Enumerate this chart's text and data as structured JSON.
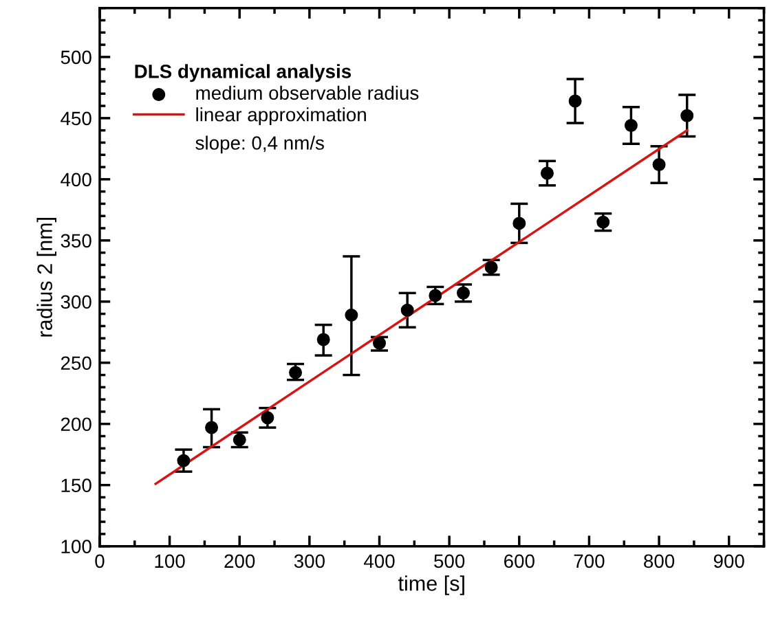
{
  "chart_data": {
    "type": "scatter",
    "xlabel": "time [s]",
    "ylabel": "radius 2 [nm]",
    "legend_title": "DLS dynamical analysis",
    "xlim": [
      0,
      950
    ],
    "xticks": [
      0,
      100,
      200,
      300,
      400,
      500,
      600,
      700,
      800,
      900
    ],
    "ylim": [
      100,
      540
    ],
    "yticks": [
      100,
      150,
      200,
      250,
      300,
      350,
      400,
      450,
      500
    ],
    "legend": "top left",
    "grid": false,
    "series": [
      {
        "name": "medium observable radius",
        "marker": "circle",
        "color": "#000000",
        "x": [
          120,
          160,
          200,
          240,
          280,
          320,
          360,
          400,
          440,
          480,
          520,
          560,
          600,
          640,
          680,
          720,
          760,
          800,
          840
        ],
        "values": [
          170,
          197,
          187,
          205,
          242,
          269,
          289,
          266,
          293,
          305,
          307,
          328,
          364,
          405,
          464,
          365,
          444,
          412,
          452
        ],
        "errors": [
          [
            161,
            179
          ],
          [
            181,
            212
          ],
          [
            181,
            193
          ],
          [
            197,
            213
          ],
          [
            236,
            249
          ],
          [
            256,
            281
          ],
          [
            240,
            337
          ],
          [
            260,
            271
          ],
          [
            279,
            307
          ],
          [
            298,
            312
          ],
          [
            300,
            314
          ],
          [
            322,
            334
          ],
          [
            348,
            380
          ],
          [
            395,
            415
          ],
          [
            446,
            482
          ],
          [
            358,
            372
          ],
          [
            429,
            459
          ],
          [
            397,
            427
          ],
          [
            435,
            469
          ]
        ]
      },
      {
        "name": "linear approximation",
        "type": "line",
        "color": "#dd1111",
        "x": [
          80,
          840
        ],
        "values": [
          151,
          440
        ],
        "line_style": "solid"
      }
    ],
    "annotations": [
      "slope: 0,4 nm/s"
    ]
  }
}
